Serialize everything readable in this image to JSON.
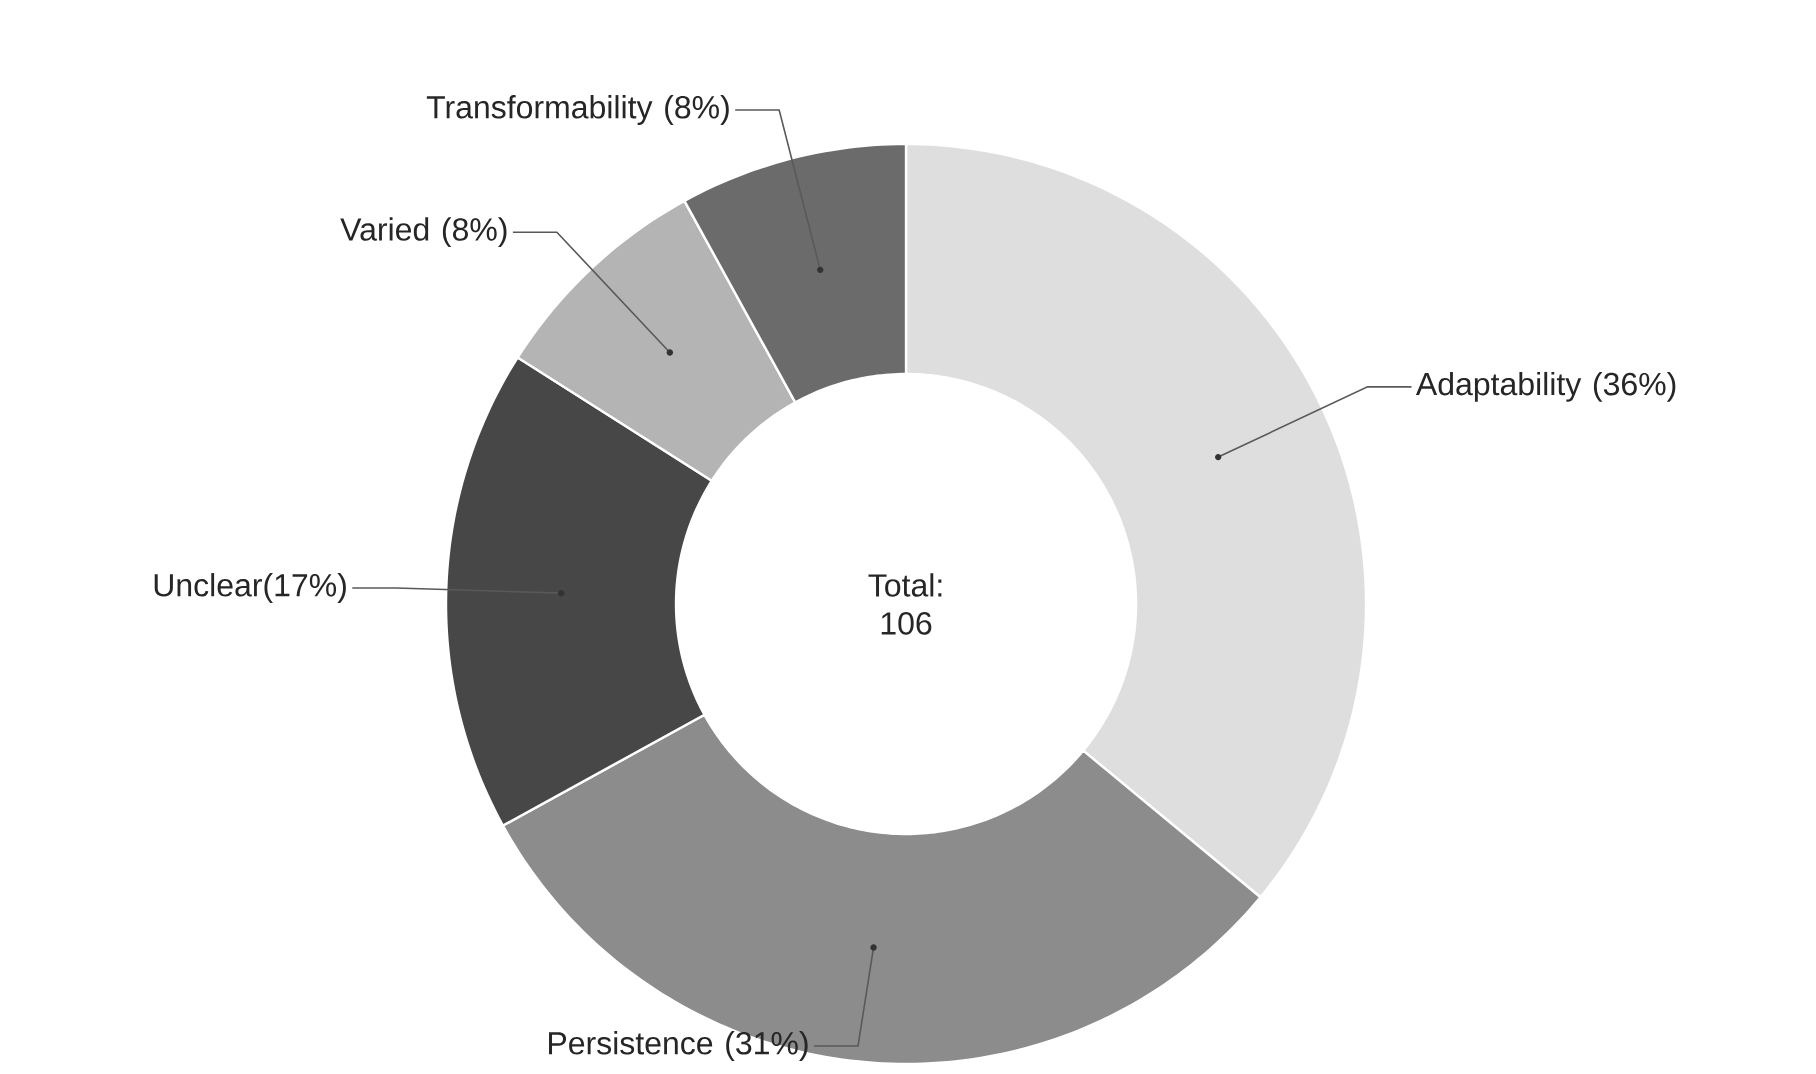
{
  "chart_data": {
    "type": "donut",
    "categories": [
      "Adaptability (36%)",
      "Persistence (31%)",
      "Unclear(17%)",
      "Varied (8%)",
      "Transformability (8%)"
    ],
    "values": [
      36,
      31,
      17,
      8,
      8
    ],
    "colors": [
      "#dedede",
      "#8c8c8c",
      "#474747",
      "#b4b4b4",
      "#6b6b6b"
    ],
    "annotations": [
      "Total: 106"
    ]
  }
}
